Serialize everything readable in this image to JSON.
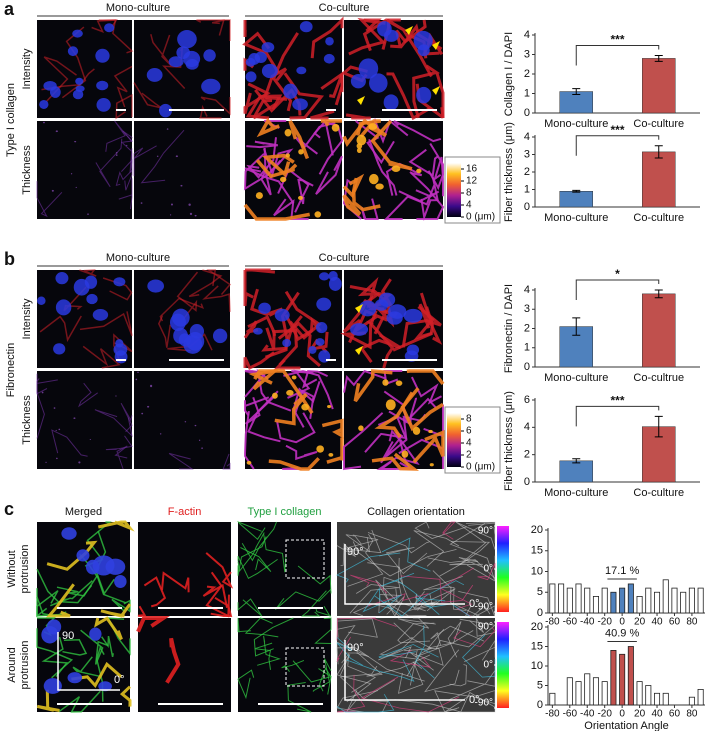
{
  "panel_a": {
    "letter": "a",
    "row_title": "Type I collagen",
    "columns": [
      "Mono-culture",
      "Co-culture"
    ],
    "rows": [
      "Intensity",
      "Thickness"
    ],
    "colorbar": {
      "lim": [
        0,
        18
      ],
      "ticks": [
        16,
        12,
        8,
        4,
        {
          "value": 0,
          "label": "0 (μm)"
        }
      ]
    }
  },
  "panel_b": {
    "letter": "b",
    "row_title": "Fibronectin",
    "columns": [
      "Mono-culture",
      "Co-culture"
    ],
    "rows": [
      "Intensity",
      "Thickness"
    ],
    "colorbar": {
      "lim": [
        0,
        9
      ],
      "ticks": [
        8,
        6,
        4,
        2,
        {
          "value": 0,
          "label": "0 (μm)"
        }
      ]
    }
  },
  "panel_c": {
    "letter": "c",
    "columns": [
      "Merged",
      "F-actin",
      "Type I collagen",
      "Collagen orientation"
    ],
    "rows": [
      [
        "Without",
        "protrusion"
      ],
      [
        "Around",
        "protrusion"
      ]
    ],
    "merged_axes": [
      "90",
      "0°"
    ],
    "orientation_axes": [
      "90°",
      "0°"
    ],
    "hue_bar": {
      "lim": [
        -90,
        90
      ],
      "ticks": [
        {
          "value": 90,
          "label": "90°"
        },
        {
          "value": 0,
          "label": "0°"
        },
        {
          "value": -90,
          "label": "-90°"
        }
      ]
    }
  },
  "chart_data": [
    {
      "type": "bar",
      "ylabel": "Collagen I / DAPI",
      "categories": [
        "Mono-culture",
        "Co-culture"
      ],
      "values": [
        1.1,
        2.8
      ],
      "errors": [
        0.15,
        0.15
      ],
      "colors": [
        "#4f81bd",
        "#c0504d"
      ],
      "ylim": [
        0,
        4
      ],
      "yticks": [
        0,
        1,
        2,
        3,
        4
      ],
      "significance": "***"
    },
    {
      "type": "bar",
      "ylabel": "Fiber thickness (μm)",
      "categories": [
        "Mono-culture",
        "Co-culture"
      ],
      "values": [
        0.9,
        3.15
      ],
      "errors": [
        0.05,
        0.35
      ],
      "colors": [
        "#4f81bd",
        "#c0504d"
      ],
      "ylim": [
        0,
        4
      ],
      "yticks": [
        0,
        1,
        2,
        3,
        4
      ],
      "significance": "***"
    },
    {
      "type": "bar",
      "ylabel": "Fibronectin / DAPI",
      "categories": [
        "Mono-culture",
        "Co-cultrue"
      ],
      "values": [
        2.1,
        3.8
      ],
      "errors": [
        0.45,
        0.2
      ],
      "colors": [
        "#4f81bd",
        "#c0504d"
      ],
      "ylim": [
        0,
        4
      ],
      "yticks": [
        0,
        1,
        2,
        3,
        4
      ],
      "significance": "*"
    },
    {
      "type": "bar",
      "ylabel": "Fiber thickness (μm)",
      "categories": [
        "Mono-culture",
        "Co-culture"
      ],
      "values": [
        1.55,
        4.05
      ],
      "errors": [
        0.15,
        0.75
      ],
      "colors": [
        "#4f81bd",
        "#c0504d"
      ],
      "ylim": [
        0,
        6
      ],
      "yticks": [
        0,
        2,
        4,
        6
      ],
      "significance": "***"
    },
    {
      "type": "histogram",
      "bins": [
        -85,
        -75,
        -65,
        -55,
        -45,
        -35,
        -25,
        -15,
        -5,
        5,
        15,
        25,
        35,
        45,
        55,
        65,
        75,
        85,
        95
      ],
      "values": [
        7,
        7,
        6,
        7,
        6,
        4,
        6,
        5,
        6,
        7,
        4,
        6,
        5,
        8,
        6,
        5,
        6,
        6
      ],
      "color": "#ffffff",
      "highlight_color": "#4f81bd",
      "highlight_range": [
        -15,
        15
      ],
      "annotation": "17.1 %",
      "xlim": [
        -85,
        95
      ],
      "xticks": [
        -80,
        -60,
        -40,
        -20,
        0,
        20,
        40,
        60,
        80
      ],
      "ylim": [
        0,
        20
      ],
      "yticks": [
        0,
        5,
        10,
        15,
        20
      ]
    },
    {
      "type": "histogram",
      "bins": [
        -85,
        -75,
        -65,
        -55,
        -45,
        -35,
        -25,
        -15,
        -5,
        5,
        15,
        25,
        35,
        45,
        55,
        65,
        75,
        85,
        95
      ],
      "values": [
        3,
        0,
        7,
        6,
        8,
        7,
        6,
        14,
        13,
        15,
        6,
        5,
        3,
        3,
        0,
        0,
        2,
        4
      ],
      "color": "#ffffff",
      "highlight_color": "#c0504d",
      "highlight_range": [
        -15,
        15
      ],
      "annotation": "40.9 %",
      "xlim": [
        -85,
        95
      ],
      "xticks": [
        -80,
        -60,
        -40,
        -20,
        0,
        20,
        40,
        60,
        80
      ],
      "ylim": [
        0,
        20
      ],
      "yticks": [
        0,
        5,
        10,
        15,
        20
      ],
      "xlabel": "Orientation Angle"
    }
  ]
}
